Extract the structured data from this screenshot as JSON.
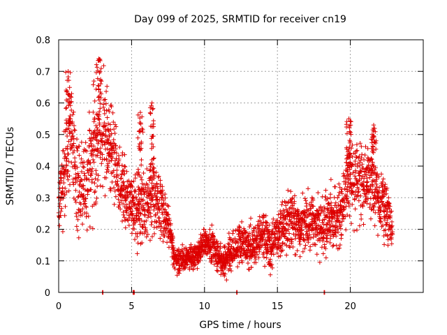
{
  "chart_data": {
    "type": "scatter",
    "title": "Day 099 of 2025, SRMTID for receiver cn19",
    "xlabel": "GPS time / hours",
    "ylabel": "SRMTID / TECUs",
    "xlim": [
      0,
      25
    ],
    "ylim": [
      0,
      0.8
    ],
    "xticks": [
      0,
      5,
      10,
      15,
      20
    ],
    "xtick_labels": [
      "0",
      "5",
      "10",
      "15",
      "20"
    ],
    "yticks": [
      0,
      0.1,
      0.2,
      0.3,
      0.4,
      0.5,
      0.6,
      0.7,
      0.8
    ],
    "ytick_labels": [
      "0",
      "0.1",
      "0.2",
      "0.3",
      "0.4",
      "0.5",
      "0.6",
      "0.7",
      "0.8"
    ],
    "grid": true,
    "marker": "plus",
    "series_color": "#dd0000",
    "envelope": {
      "x": [
        0,
        0.5,
        0.8,
        1.2,
        1.6,
        2.0,
        2.5,
        2.8,
        3.2,
        3.6,
        4.0,
        4.5,
        5.0,
        5.5,
        6.0,
        6.5,
        7.0,
        7.5,
        8.0,
        8.5,
        9.0,
        9.5,
        10.0,
        10.5,
        11.0,
        11.5,
        12.0,
        12.5,
        13.0,
        13.5,
        14.0,
        14.5,
        15.0,
        15.5,
        16.0,
        16.5,
        17.0,
        17.5,
        18.0,
        18.5,
        19.0,
        19.5,
        20.0,
        20.5,
        21.0,
        21.5,
        22.0,
        22.5,
        22.9
      ],
      "center": [
        0.28,
        0.4,
        0.52,
        0.35,
        0.33,
        0.36,
        0.45,
        0.55,
        0.5,
        0.45,
        0.36,
        0.33,
        0.27,
        0.26,
        0.28,
        0.31,
        0.27,
        0.22,
        0.1,
        0.1,
        0.11,
        0.12,
        0.16,
        0.15,
        0.11,
        0.1,
        0.14,
        0.16,
        0.14,
        0.15,
        0.19,
        0.13,
        0.19,
        0.21,
        0.23,
        0.2,
        0.24,
        0.22,
        0.21,
        0.24,
        0.23,
        0.27,
        0.37,
        0.36,
        0.34,
        0.36,
        0.3,
        0.26,
        0.2
      ],
      "spread": [
        0.08,
        0.11,
        0.13,
        0.12,
        0.12,
        0.12,
        0.14,
        0.13,
        0.12,
        0.11,
        0.09,
        0.08,
        0.08,
        0.08,
        0.09,
        0.09,
        0.07,
        0.05,
        0.03,
        0.03,
        0.03,
        0.03,
        0.03,
        0.04,
        0.04,
        0.04,
        0.05,
        0.05,
        0.05,
        0.05,
        0.06,
        0.05,
        0.05,
        0.06,
        0.07,
        0.07,
        0.07,
        0.07,
        0.07,
        0.07,
        0.07,
        0.08,
        0.1,
        0.09,
        0.08,
        0.08,
        0.08,
        0.07,
        0.05
      ]
    },
    "peaks": [
      {
        "x": 0.65,
        "y": 0.7
      },
      {
        "x": 2.75,
        "y": 0.74
      },
      {
        "x": 5.6,
        "y": 0.57
      },
      {
        "x": 6.4,
        "y": 0.6
      },
      {
        "x": 19.9,
        "y": 0.55
      },
      {
        "x": 21.6,
        "y": 0.53
      }
    ],
    "zero_marks_x": [
      3.0,
      5.1,
      5.15,
      12.2,
      18.2
    ],
    "sample_step_hours": 0.012
  }
}
